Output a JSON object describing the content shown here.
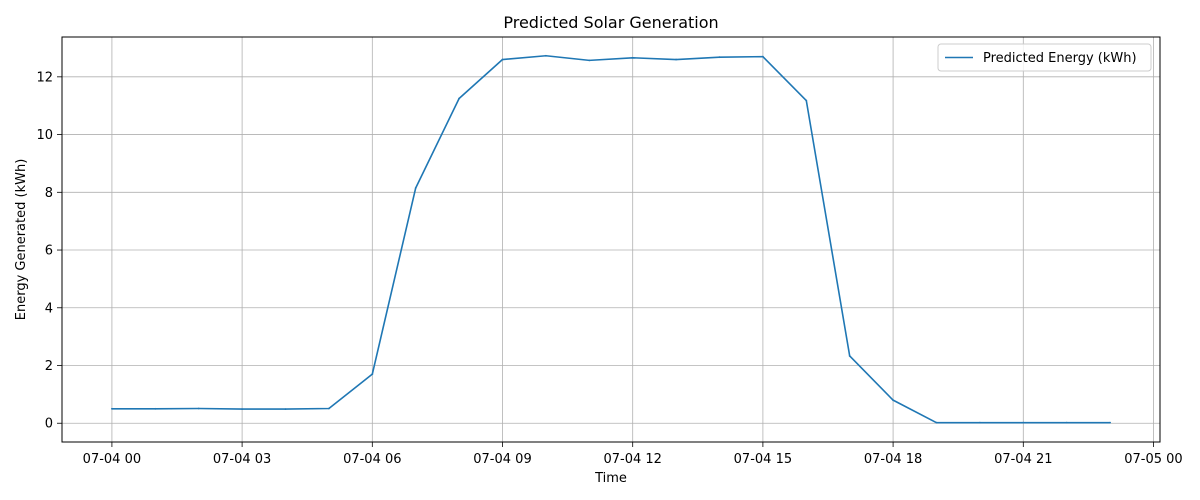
{
  "chart_data": {
    "type": "line",
    "title": "Predicted Solar Generation",
    "xlabel": "Time",
    "ylabel": "Energy Generated (kWh)",
    "x_tick_labels": [
      "07-04 00",
      "07-04 03",
      "07-04 06",
      "07-04 09",
      "07-04 12",
      "07-04 15",
      "07-04 18",
      "07-04 21",
      "07-05 00"
    ],
    "y_ticks": [
      0,
      2,
      4,
      6,
      8,
      10,
      12
    ],
    "grid": true,
    "legend_position": "top-right",
    "x": [
      "07-04 00:00",
      "07-04 01:00",
      "07-04 02:00",
      "07-04 03:00",
      "07-04 04:00",
      "07-04 05:00",
      "07-04 06:00",
      "07-04 07:00",
      "07-04 08:00",
      "07-04 09:00",
      "07-04 10:00",
      "07-04 11:00",
      "07-04 12:00",
      "07-04 13:00",
      "07-04 14:00",
      "07-04 15:00",
      "07-04 16:00",
      "07-04 17:00",
      "07-04 18:00",
      "07-04 19:00",
      "07-04 20:00",
      "07-04 21:00",
      "07-04 22:00",
      "07-04 23:00"
    ],
    "series": [
      {
        "name": "Predicted Energy (kWh)",
        "color": "#1f77b4",
        "values": [
          0.5,
          0.5,
          0.51,
          0.49,
          0.49,
          0.51,
          1.7,
          8.15,
          11.25,
          12.6,
          12.73,
          12.57,
          12.66,
          12.6,
          12.68,
          12.7,
          11.18,
          2.33,
          0.8,
          0.02,
          0.02,
          0.02,
          0.02,
          0.02
        ]
      }
    ]
  }
}
